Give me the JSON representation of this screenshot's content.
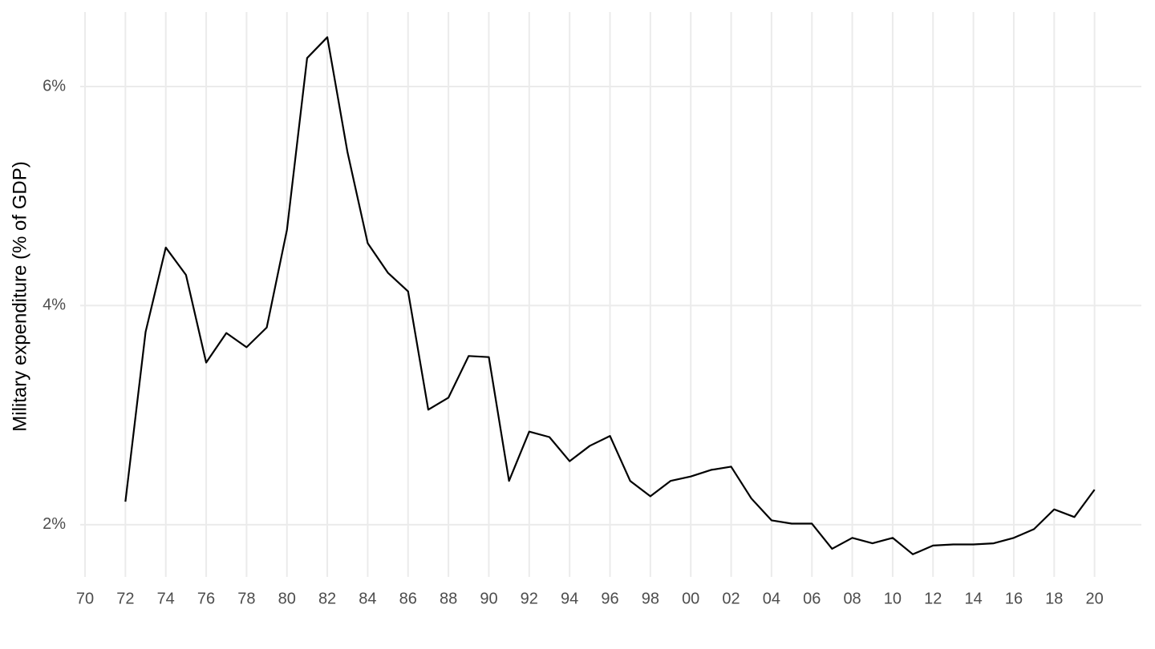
{
  "chart_data": {
    "type": "line",
    "y_label": "Military expenditure (% of GDP)",
    "x": [
      1972,
      1973,
      1974,
      1975,
      1976,
      1977,
      1978,
      1979,
      1980,
      1981,
      1982,
      1983,
      1984,
      1985,
      1986,
      1987,
      1988,
      1989,
      1990,
      1991,
      1992,
      1993,
      1994,
      1995,
      1996,
      1997,
      1998,
      1999,
      2000,
      2001,
      2002,
      2003,
      2004,
      2005,
      2006,
      2007,
      2008,
      2009,
      2010,
      2011,
      2012,
      2013,
      2014,
      2015,
      2016,
      2017,
      2018,
      2019,
      2020
    ],
    "values": [
      2.21,
      3.76,
      4.53,
      4.28,
      3.48,
      3.75,
      3.62,
      3.8,
      4.69,
      6.26,
      6.45,
      5.4,
      4.57,
      4.3,
      4.13,
      3.05,
      3.16,
      3.54,
      3.53,
      2.4,
      2.85,
      2.8,
      2.58,
      2.72,
      2.81,
      2.4,
      2.26,
      2.4,
      2.44,
      2.5,
      2.53,
      2.24,
      2.04,
      2.01,
      2.01,
      1.78,
      1.88,
      1.83,
      1.88,
      1.73,
      1.81,
      1.82,
      1.82,
      1.83,
      1.88,
      1.96,
      2.14,
      2.07,
      2.32
    ],
    "color": "#000000",
    "xlim": [
      1970,
      2022
    ],
    "xticks": [
      {
        "value": 1970,
        "label": "70"
      },
      {
        "value": 1972,
        "label": "72"
      },
      {
        "value": 1974,
        "label": "74"
      },
      {
        "value": 1976,
        "label": "76"
      },
      {
        "value": 1978,
        "label": "78"
      },
      {
        "value": 1980,
        "label": "80"
      },
      {
        "value": 1982,
        "label": "82"
      },
      {
        "value": 1984,
        "label": "84"
      },
      {
        "value": 1986,
        "label": "86"
      },
      {
        "value": 1988,
        "label": "88"
      },
      {
        "value": 1990,
        "label": "90"
      },
      {
        "value": 1992,
        "label": "92"
      },
      {
        "value": 1994,
        "label": "94"
      },
      {
        "value": 1996,
        "label": "96"
      },
      {
        "value": 1998,
        "label": "98"
      },
      {
        "value": 2000,
        "label": "00"
      },
      {
        "value": 2002,
        "label": "02"
      },
      {
        "value": 2004,
        "label": "04"
      },
      {
        "value": 2006,
        "label": "06"
      },
      {
        "value": 2008,
        "label": "08"
      },
      {
        "value": 2010,
        "label": "10"
      },
      {
        "value": 2012,
        "label": "12"
      },
      {
        "value": 2014,
        "label": "14"
      },
      {
        "value": 2016,
        "label": "16"
      },
      {
        "value": 2018,
        "label": "18"
      },
      {
        "value": 2020,
        "label": "20"
      }
    ],
    "ylim": [
      1.67,
      6.68
    ],
    "yticks": [
      {
        "value": 2,
        "label": "2%"
      },
      {
        "value": 4,
        "label": "4%"
      },
      {
        "value": 6,
        "label": "6%"
      }
    ],
    "grid": true
  }
}
